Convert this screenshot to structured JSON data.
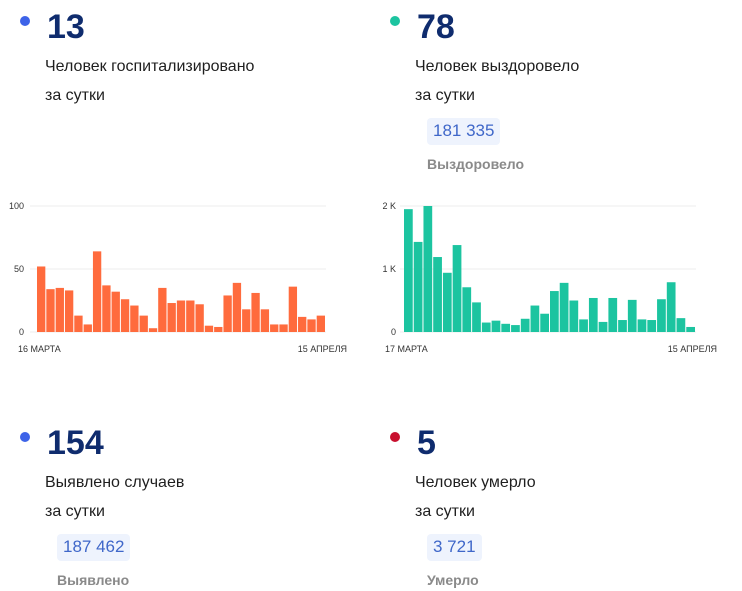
{
  "stats": {
    "hospitalized": {
      "value": "13",
      "desc_line1": "Человек госпитализировано",
      "desc_line2": "за сутки",
      "dot_color": "#3d63e8"
    },
    "recovered": {
      "value": "78",
      "desc_line1": "Человек выздоровело",
      "desc_line2": "за сутки",
      "total": "181 335",
      "total_label": "Выздоровело",
      "dot_color": "#1cc4a0"
    },
    "detected": {
      "value": "154",
      "desc_line1": "Выявлено случаев",
      "desc_line2": "за сутки",
      "total": "187 462",
      "total_label": "Выявлено",
      "dot_color": "#3d63e8"
    },
    "deaths": {
      "value": "5",
      "desc_line1": "Человек умерло",
      "desc_line2": "за сутки",
      "total": "3 721",
      "total_label": "Умерло",
      "dot_color": "#c8102e"
    }
  },
  "chart_data": [
    {
      "type": "bar",
      "title": "",
      "color": "#ff6b3d",
      "x_start_label": "16 МАРТА",
      "x_end_label": "15 АПРЕЛЯ",
      "yticks": [
        0,
        50,
        100
      ],
      "ytick_labels": [
        "0",
        "50",
        "100"
      ],
      "ylim": [
        0,
        100
      ],
      "grid": true,
      "values": [
        52,
        34,
        35,
        33,
        13,
        6,
        64,
        37,
        32,
        26,
        21,
        13,
        3,
        35,
        23,
        25,
        25,
        22,
        5,
        4,
        29,
        39,
        18,
        31,
        18,
        6,
        6,
        36,
        12,
        10,
        13
      ]
    },
    {
      "type": "bar",
      "title": "",
      "color": "#1cc4a0",
      "x_start_label": "17 МАРТА",
      "x_end_label": "15 АПРЕЛЯ",
      "yticks": [
        0,
        1000,
        2000
      ],
      "ytick_labels": [
        "0",
        "1 K",
        "2 K"
      ],
      "ylim": [
        0,
        2000
      ],
      "grid": true,
      "values": [
        1950,
        1430,
        2000,
        1190,
        940,
        1380,
        710,
        470,
        150,
        180,
        130,
        110,
        210,
        420,
        290,
        650,
        780,
        500,
        200,
        540,
        160,
        540,
        190,
        510,
        200,
        190,
        520,
        790,
        220,
        80
      ]
    }
  ]
}
